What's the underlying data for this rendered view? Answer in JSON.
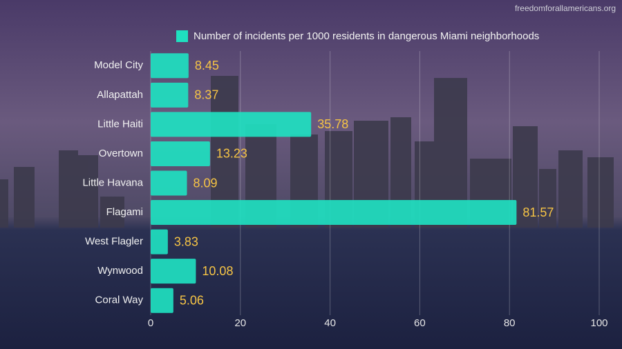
{
  "chart_data": {
    "type": "bar",
    "orientation": "horizontal",
    "source": "freedomforallamericans.org",
    "categories": [
      "Model City",
      "Allapattah",
      "Little Haiti",
      "Overtown",
      "Little Havana",
      "Flagami",
      "West Flagler",
      "Wynwood",
      "Coral Way"
    ],
    "series": [
      {
        "name": "Number of incidents per 1000 residents in dangerous Miami neighborhoods",
        "color": "#1fe0c0",
        "values": [
          8.45,
          8.37,
          35.78,
          13.23,
          8.09,
          81.57,
          3.83,
          10.08,
          5.06
        ]
      }
    ],
    "xlim": [
      0,
      100
    ],
    "xticks": [
      0,
      20,
      40,
      60,
      80,
      100
    ],
    "grid": true,
    "legend": "top"
  }
}
